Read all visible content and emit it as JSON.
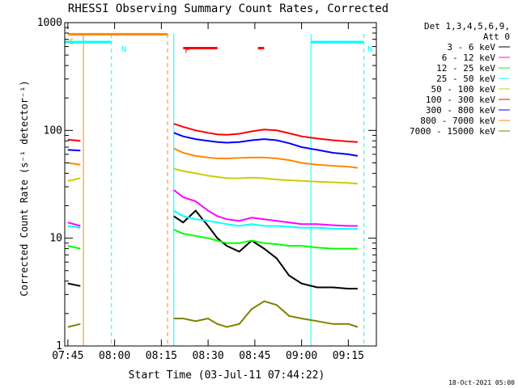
{
  "chart_data": {
    "type": "line",
    "title": "RHESSI Observing Summary Count Rates, Corrected",
    "xlabel": "Start Time (03-Jul-11 07:44:22)",
    "ylabel": "Corrected Count Rate (s⁻¹ detector⁻¹)",
    "yscale": "log",
    "ylim": [
      1,
      1000
    ],
    "xlim": [
      "07:44",
      "09:24"
    ],
    "x_ticks": [
      "07:45",
      "08:00",
      "08:15",
      "08:30",
      "08:45",
      "09:00",
      "09:15"
    ],
    "y_ticks": [
      "1",
      "10",
      "100",
      "1000"
    ],
    "footer": "18-Oct-2021 05:00",
    "legend": {
      "header_line1": "Det 1,3,4,5,6,9,",
      "header_line2": "Att 0",
      "placement": "top-right"
    },
    "data_gaps": [
      [
        "07:50",
        "08:18"
      ]
    ],
    "series": [
      {
        "name": "3 - 6 keV",
        "color": "#000000",
        "x": [
          "07:45",
          "07:49",
          "08:19",
          "08:22",
          "08:26",
          "08:30",
          "08:33",
          "08:36",
          "08:40",
          "08:44",
          "08:48",
          "08:52",
          "08:56",
          "09:00",
          "09:05",
          "09:10",
          "09:15",
          "09:18"
        ],
        "y": [
          3.8,
          3.6,
          16,
          14,
          18,
          13,
          10,
          8.5,
          7.5,
          9.5,
          8,
          6.5,
          4.5,
          3.8,
          3.5,
          3.5,
          3.4,
          3.4
        ]
      },
      {
        "name": "6 - 12 keV",
        "color": "#ff00ff",
        "x": [
          "07:45",
          "07:49",
          "08:19",
          "08:22",
          "08:26",
          "08:30",
          "08:33",
          "08:36",
          "08:40",
          "08:44",
          "08:48",
          "08:52",
          "08:56",
          "09:00",
          "09:05",
          "09:10",
          "09:15",
          "09:18"
        ],
        "y": [
          14,
          13,
          28,
          24,
          22,
          18,
          16,
          15,
          14.5,
          15.5,
          15,
          14.5,
          14,
          13.5,
          13.5,
          13.2,
          13,
          13
        ]
      },
      {
        "name": "12 - 25 keV",
        "color": "#00ff00",
        "x": [
          "07:45",
          "07:49",
          "08:19",
          "08:22",
          "08:26",
          "08:30",
          "08:33",
          "08:36",
          "08:40",
          "08:44",
          "08:48",
          "08:52",
          "08:56",
          "09:00",
          "09:05",
          "09:10",
          "09:15",
          "09:18"
        ],
        "y": [
          8.5,
          8,
          12,
          11,
          10.5,
          10,
          9.5,
          9,
          9,
          9.5,
          9,
          8.8,
          8.5,
          8.5,
          8.2,
          8,
          8,
          8
        ]
      },
      {
        "name": "25 - 50 keV",
        "color": "#00ffff",
        "x": [
          "07:45",
          "07:49",
          "08:19",
          "08:22",
          "08:26",
          "08:30",
          "08:33",
          "08:36",
          "08:40",
          "08:44",
          "08:48",
          "08:52",
          "08:56",
          "09:00",
          "09:05",
          "09:10",
          "09:15",
          "09:18"
        ],
        "y": [
          13,
          12.5,
          18,
          16,
          15,
          14.5,
          14,
          13.5,
          13,
          13.5,
          13,
          13,
          12.8,
          12.5,
          12.5,
          12.3,
          12.2,
          12.2
        ]
      },
      {
        "name": "50 - 100 keV",
        "color": "#cccc00",
        "x": [
          "07:45",
          "07:49",
          "08:19",
          "08:22",
          "08:26",
          "08:30",
          "08:33",
          "08:36",
          "08:40",
          "08:44",
          "08:48",
          "08:52",
          "08:56",
          "09:00",
          "09:05",
          "09:10",
          "09:15",
          "09:18"
        ],
        "y": [
          34,
          36,
          44,
          42,
          40,
          38,
          37,
          36,
          36,
          36.5,
          36,
          35,
          34.5,
          34,
          33.5,
          33,
          32.5,
          32
        ]
      },
      {
        "name": "100 - 300 keV",
        "color": "#ff0000",
        "x": [
          "07:45",
          "07:49",
          "08:19",
          "08:22",
          "08:26",
          "08:30",
          "08:33",
          "08:36",
          "08:40",
          "08:44",
          "08:48",
          "08:52",
          "08:56",
          "09:00",
          "09:05",
          "09:10",
          "09:15",
          "09:18"
        ],
        "y": [
          82,
          80,
          115,
          108,
          100,
          95,
          92,
          91,
          93,
          98,
          102,
          100,
          94,
          88,
          84,
          81,
          79,
          78
        ]
      },
      {
        "name": "300 - 800 keV",
        "color": "#0000ff",
        "x": [
          "07:45",
          "07:49",
          "08:19",
          "08:22",
          "08:26",
          "08:30",
          "08:33",
          "08:36",
          "08:40",
          "08:44",
          "08:48",
          "08:52",
          "08:56",
          "09:00",
          "09:05",
          "09:10",
          "09:15",
          "09:18"
        ],
        "y": [
          66,
          65,
          95,
          88,
          83,
          80,
          78,
          77,
          78,
          81,
          83,
          81,
          76,
          70,
          66,
          62,
          60,
          58
        ]
      },
      {
        "name": "800 - 7000 keV",
        "color": "#ff8800",
        "x": [
          "07:45",
          "07:49",
          "08:19",
          "08:22",
          "08:26",
          "08:30",
          "08:33",
          "08:36",
          "08:40",
          "08:44",
          "08:48",
          "08:52",
          "08:56",
          "09:00",
          "09:05",
          "09:10",
          "09:15",
          "09:18"
        ],
        "y": [
          50,
          48,
          68,
          62,
          58,
          56,
          55,
          55,
          55.5,
          56,
          56,
          55,
          53,
          50,
          48,
          47,
          46,
          45
        ]
      },
      {
        "name": "7000 - 15000 keV",
        "color": "#808000",
        "x": [
          "07:45",
          "07:49",
          "08:19",
          "08:22",
          "08:26",
          "08:30",
          "08:33",
          "08:36",
          "08:40",
          "08:44",
          "08:48",
          "08:52",
          "08:56",
          "09:00",
          "09:05",
          "09:10",
          "09:15",
          "09:18"
        ],
        "y": [
          1.5,
          1.6,
          1.8,
          1.8,
          1.7,
          1.8,
          1.6,
          1.5,
          1.6,
          2.2,
          2.6,
          2.4,
          1.9,
          1.8,
          1.7,
          1.6,
          1.6,
          1.5
        ]
      }
    ],
    "flags": [
      {
        "label": "S",
        "color": "#ff8800",
        "x": [
          "07:45",
          "08:17"
        ],
        "level": 780
      },
      {
        "label": "N",
        "color": "#00ffff",
        "x": [
          "07:44",
          "07:59"
        ],
        "level": 660
      },
      {
        "label": "N",
        "color": "#00ffff",
        "x": [
          "09:03",
          "09:20"
        ],
        "level": 660
      },
      {
        "label": "F",
        "color": "#ff0000",
        "x": [
          "08:22",
          "08:33"
        ],
        "level": 580
      },
      {
        "label": "",
        "color": "#ff0000",
        "x": [
          "08:46",
          "08:48"
        ],
        "level": 580
      }
    ],
    "vertical_markers": [
      {
        "x": "07:44",
        "color": "#00ffff",
        "style": "solid"
      },
      {
        "x": "07:50",
        "color": "#ff8800",
        "style": "solid"
      },
      {
        "x": "07:59",
        "color": "#00ffff",
        "style": "dashed"
      },
      {
        "x": "08:17",
        "color": "#ff8800",
        "style": "dashed"
      },
      {
        "x": "08:19",
        "color": "#00ffff",
        "style": "solid"
      },
      {
        "x": "09:03",
        "color": "#00ffff",
        "style": "solid"
      },
      {
        "x": "09:20",
        "color": "#00ffff",
        "style": "dashed"
      }
    ]
  }
}
